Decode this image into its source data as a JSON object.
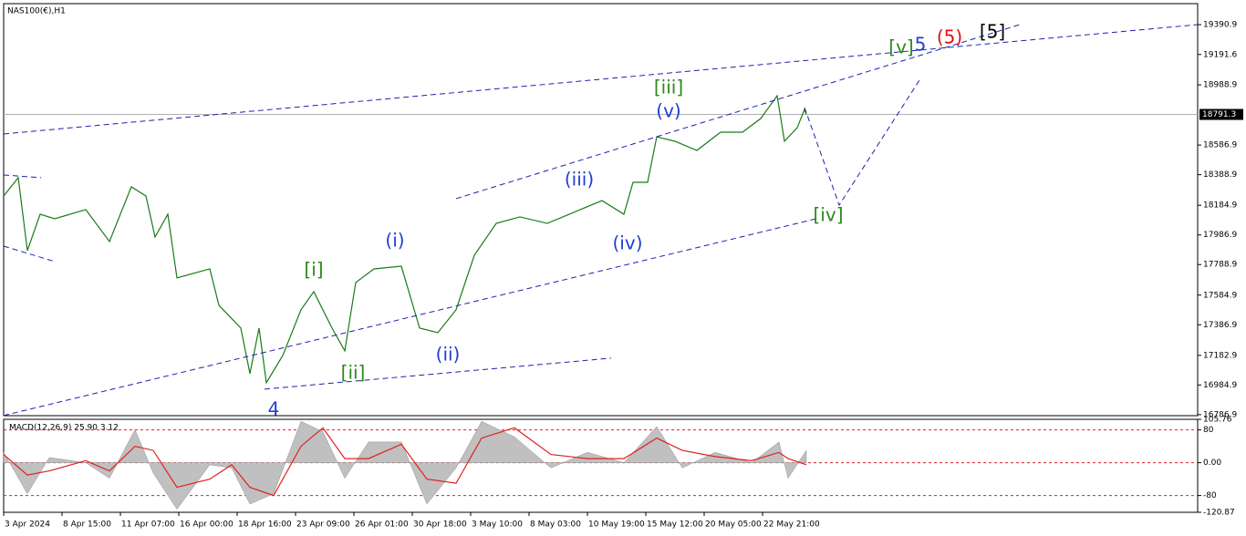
{
  "chart_data": [
    {
      "type": "line",
      "title": "NAS100(€),H1",
      "color": "#1a7a1a",
      "x": [
        0,
        8,
        13,
        20,
        28,
        45,
        58,
        70,
        78,
        83,
        90,
        95,
        113,
        118,
        130,
        135,
        140,
        144,
        153,
        163,
        170,
        180,
        187,
        193,
        203,
        218,
        228,
        238,
        248,
        258,
        270,
        283,
        298,
        310,
        328,
        340,
        345,
        353,
        358,
        368,
        380,
        393,
        405,
        415,
        424,
        428,
        435,
        439,
        440
      ],
      "values": [
        18247,
        18369,
        17882,
        18125,
        18095,
        18156,
        17943,
        18308,
        18247,
        17973,
        18125,
        17700,
        17760,
        17517,
        17365,
        17061,
        17365,
        17000,
        17182,
        17487,
        17608,
        17365,
        17213,
        17669,
        17760,
        17778,
        17365,
        17334,
        17487,
        17851,
        18064,
        18107,
        18064,
        18125,
        18216,
        18125,
        18338,
        18338,
        18642,
        18612,
        18551,
        18673,
        18673,
        18764,
        18916,
        18612,
        18703,
        18825,
        18791.3
      ],
      "xlim": [
        0,
        654.5
      ],
      "ylim": [
        16780,
        19531
      ],
      "yticks": [
        19390.9,
        19191.6,
        18988.9,
        18586.9,
        18388.9,
        18184.9,
        17986.9,
        17788.9,
        17584.9,
        17386.9,
        17182.9,
        16984.9,
        16786.9
      ],
      "current_price": 18791.3,
      "lines": [
        {
          "x": [
            0,
            654.5
          ],
          "y": [
            18661,
            19391
          ],
          "color": "#1f1fb0"
        },
        {
          "x": [
            0,
            445.5
          ],
          "y": [
            16781,
            18095
          ],
          "color": "#1f1fb0"
        },
        {
          "x": [
            248,
            557
          ],
          "y": [
            18229,
            19391
          ],
          "color": "#1f1fb0"
        },
        {
          "x": [
            143,
            333
          ],
          "y": [
            16957,
            17164
          ],
          "color": "#1f1fb0"
        },
        {
          "x": [
            0,
            20.5
          ],
          "y": [
            18387,
            18369
          ],
          "color": "#1f1fb0"
        },
        {
          "x": [
            0,
            28
          ],
          "y": [
            17912,
            17809
          ],
          "color": "#1f1fb0"
        },
        {
          "x": [
            439,
            458,
            502
          ],
          "y": [
            18837,
            18186,
            19020
          ],
          "color": "#1f1fb0"
        }
      ],
      "annotations": [
        {
          "text": "4",
          "x": 148,
          "y": 16817,
          "color": "#1f3fd0"
        },
        {
          "text": "[i]",
          "x": 170,
          "y": 17748,
          "color": "#2a8a1a"
        },
        {
          "text": "[ii]",
          "x": 191.5,
          "y": 17061,
          "color": "#2a8a1a"
        },
        {
          "text": "(i)",
          "x": 214.5,
          "y": 17943,
          "color": "#1f3fd0"
        },
        {
          "text": "(ii)",
          "x": 243.5,
          "y": 17182,
          "color": "#1f3fd0"
        },
        {
          "text": "(iii)",
          "x": 315.5,
          "y": 18350,
          "color": "#1f3fd0"
        },
        {
          "text": "(iv)",
          "x": 342,
          "y": 17924,
          "color": "#1f3fd0"
        },
        {
          "text": "[iii]",
          "x": 364.5,
          "y": 18965,
          "color": "#2a8a1a"
        },
        {
          "text": "(v)",
          "x": 364.5,
          "y": 18807,
          "color": "#1f3fd0"
        },
        {
          "text": "[iv]",
          "x": 452,
          "y": 18113,
          "color": "#2a8a1a"
        },
        {
          "text": "[v]",
          "x": 492,
          "y": 19233,
          "color": "#2a8a1a"
        },
        {
          "text": "5",
          "x": 502.5,
          "y": 19251,
          "color": "#1f3fd0"
        },
        {
          "text": "(5)",
          "x": 518.5,
          "y": 19300,
          "color": "#e01010"
        },
        {
          "text": "[5]",
          "x": 542,
          "y": 19336,
          "color": "#000000"
        }
      ]
    },
    {
      "type": "macd",
      "title": "MACD(12,26,9) 25.90 3.12",
      "x": [
        0,
        13,
        25,
        45,
        58,
        72,
        82,
        95,
        113,
        125,
        135,
        148,
        163,
        175,
        187,
        200,
        218,
        232,
        248,
        262,
        280,
        300,
        320,
        340,
        358,
        372,
        390,
        410,
        425,
        430,
        440
      ],
      "series": [
        {
          "color": "#c0c0c0",
          "values": [
            25.2,
            -75.5,
            12.6,
            0,
            -37.8,
            80.6,
            -25.2,
            -113.3,
            -5,
            -12.6,
            -100.7,
            -75.5,
            100.7,
            75.6,
            -37.8,
            50.4,
            50.4,
            -100.7,
            -12.6,
            100.7,
            62.9,
            -12.6,
            25.2,
            0,
            88.1,
            -12.6,
            25.2,
            0,
            50.4,
            -37.8,
            30.2
          ]
        },
        {
          "color": "#e02020",
          "values": [
            20,
            -30,
            -20,
            5,
            -20,
            40,
            30,
            -60,
            -40,
            -5,
            -60,
            -80,
            40,
            85,
            10,
            10,
            45,
            -40,
            -50,
            60,
            85,
            20,
            10,
            10,
            60,
            30,
            15,
            5,
            25,
            10,
            -5
          ]
        }
      ],
      "levels": [
        80,
        0,
        -80
      ],
      "xlim": [
        0,
        654.5
      ],
      "ylim": [
        -120.87,
        105.76
      ],
      "yticks": [
        105.76,
        80,
        {
          "value": 0,
          "label": "0.00"
        },
        -80,
        -120.87
      ],
      "xticks": [
        {
          "value": 0,
          "label": "3 Apr 2024"
        },
        {
          "value": 32,
          "label": "8 Apr 15:00"
        },
        {
          "value": 64,
          "label": "11 Apr 07:00"
        },
        {
          "value": 96,
          "label": "16 Apr 00:00"
        },
        {
          "value": 128,
          "label": "18 Apr 16:00"
        },
        {
          "value": 160,
          "label": "23 Apr 09:00"
        },
        {
          "value": 192,
          "label": "26 Apr 01:00"
        },
        {
          "value": 224,
          "label": "30 Apr 18:00"
        },
        {
          "value": 256,
          "label": "3 May 10:00"
        },
        {
          "value": 288,
          "label": "8 May 03:00"
        },
        {
          "value": 320,
          "label": "10 May 19:00"
        },
        {
          "value": 352,
          "label": "15 May 12:00"
        },
        {
          "value": 384,
          "label": "20 May 05:00"
        },
        {
          "value": 416,
          "label": "22 May 21:00"
        }
      ]
    }
  ]
}
